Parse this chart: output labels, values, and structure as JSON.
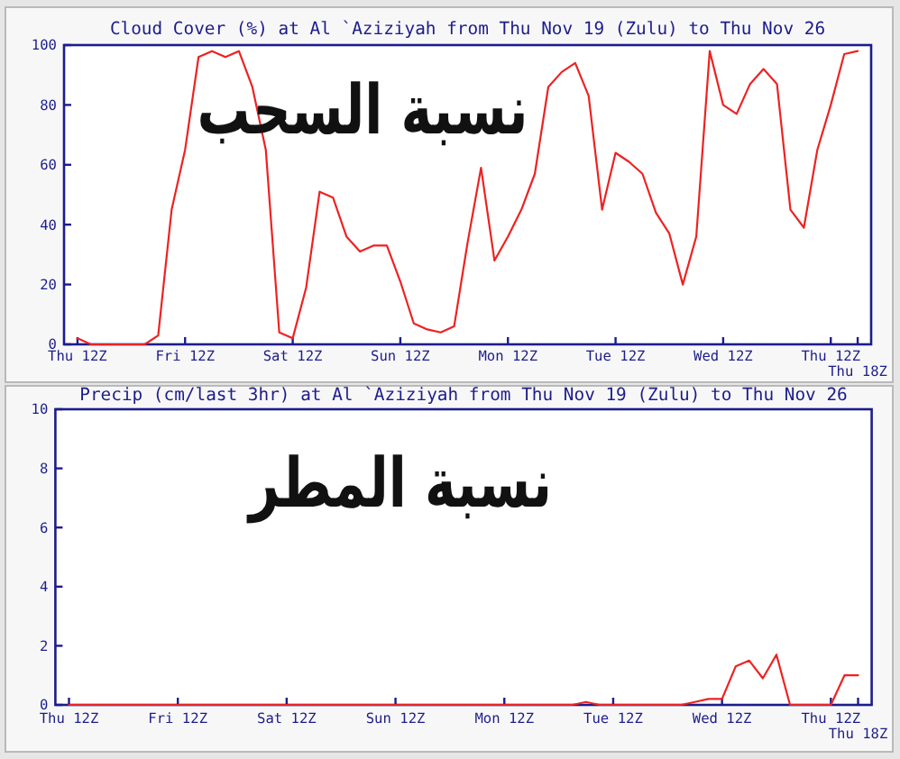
{
  "chart_data": [
    {
      "type": "line",
      "title": "Cloud Cover (%) at Al `Aziziyah from Thu Nov 19 (Zulu) to Thu Nov 26",
      "categories": [
        "Thu 12Z",
        null,
        null,
        null,
        null,
        null,
        null,
        null,
        "Fri 12Z",
        null,
        null,
        null,
        null,
        null,
        null,
        null,
        "Sat 12Z",
        null,
        null,
        null,
        null,
        null,
        null,
        null,
        "Sun 12Z",
        null,
        null,
        null,
        null,
        null,
        null,
        null,
        "Mon 12Z",
        null,
        null,
        null,
        null,
        null,
        null,
        null,
        "Tue 12Z",
        null,
        null,
        null,
        null,
        null,
        null,
        null,
        "Wed 12Z",
        null,
        null,
        null,
        null,
        null,
        null,
        null,
        "Thu 12Z",
        null,
        "Thu 18Z"
      ],
      "series": [
        {
          "color": "#ee2222",
          "values": [
            2,
            0,
            0,
            0,
            0,
            0,
            3,
            45,
            65,
            96,
            98,
            96,
            98,
            86,
            65,
            4,
            2,
            19,
            51,
            49,
            36,
            31,
            33,
            33,
            21,
            7,
            5,
            4,
            6,
            34,
            59,
            28,
            36,
            45,
            57,
            86,
            91,
            94,
            83,
            45,
            64,
            61,
            57,
            44,
            37,
            20,
            36,
            98,
            80,
            77,
            87,
            92,
            87,
            45,
            39,
            65,
            80,
            97,
            98
          ]
        }
      ],
      "ylim": [
        0,
        100
      ],
      "yticks": [
        0,
        20,
        40,
        60,
        80,
        100
      ],
      "annotations": [
        "نسبة السحب"
      ]
    },
    {
      "type": "line",
      "title": "Precip (cm/last 3hr) at Al `Aziziyah from Thu Nov 19 (Zulu) to Thu Nov 26",
      "categories": [
        "Thu 12Z",
        null,
        null,
        null,
        null,
        null,
        null,
        null,
        "Fri 12Z",
        null,
        null,
        null,
        null,
        null,
        null,
        null,
        "Sat 12Z",
        null,
        null,
        null,
        null,
        null,
        null,
        null,
        "Sun 12Z",
        null,
        null,
        null,
        null,
        null,
        null,
        null,
        "Mon 12Z",
        null,
        null,
        null,
        null,
        null,
        null,
        null,
        "Tue 12Z",
        null,
        null,
        null,
        null,
        null,
        null,
        null,
        "Wed 12Z",
        null,
        null,
        null,
        null,
        null,
        null,
        null,
        "Thu 12Z",
        null,
        "Thu 18Z"
      ],
      "series": [
        {
          "color": "#ee2222",
          "values": [
            0,
            0,
            0,
            0,
            0,
            0,
            0,
            0,
            0,
            0,
            0,
            0,
            0,
            0,
            0,
            0,
            0,
            0,
            0,
            0,
            0,
            0,
            0,
            0,
            0,
            0,
            0,
            0,
            0,
            0,
            0,
            0,
            0,
            0,
            0,
            0,
            0,
            0,
            0.1,
            0,
            0,
            0,
            0,
            0,
            0,
            0,
            0.1,
            0.2,
            0.2,
            1.3,
            1.5,
            0.9,
            1.7,
            0,
            0,
            0,
            0,
            1.0,
            1.0
          ]
        }
      ],
      "ylim": [
        0,
        10
      ],
      "yticks": [
        0,
        2,
        4,
        6,
        8,
        10
      ],
      "annotations": [
        "نسبة المطر"
      ]
    }
  ]
}
